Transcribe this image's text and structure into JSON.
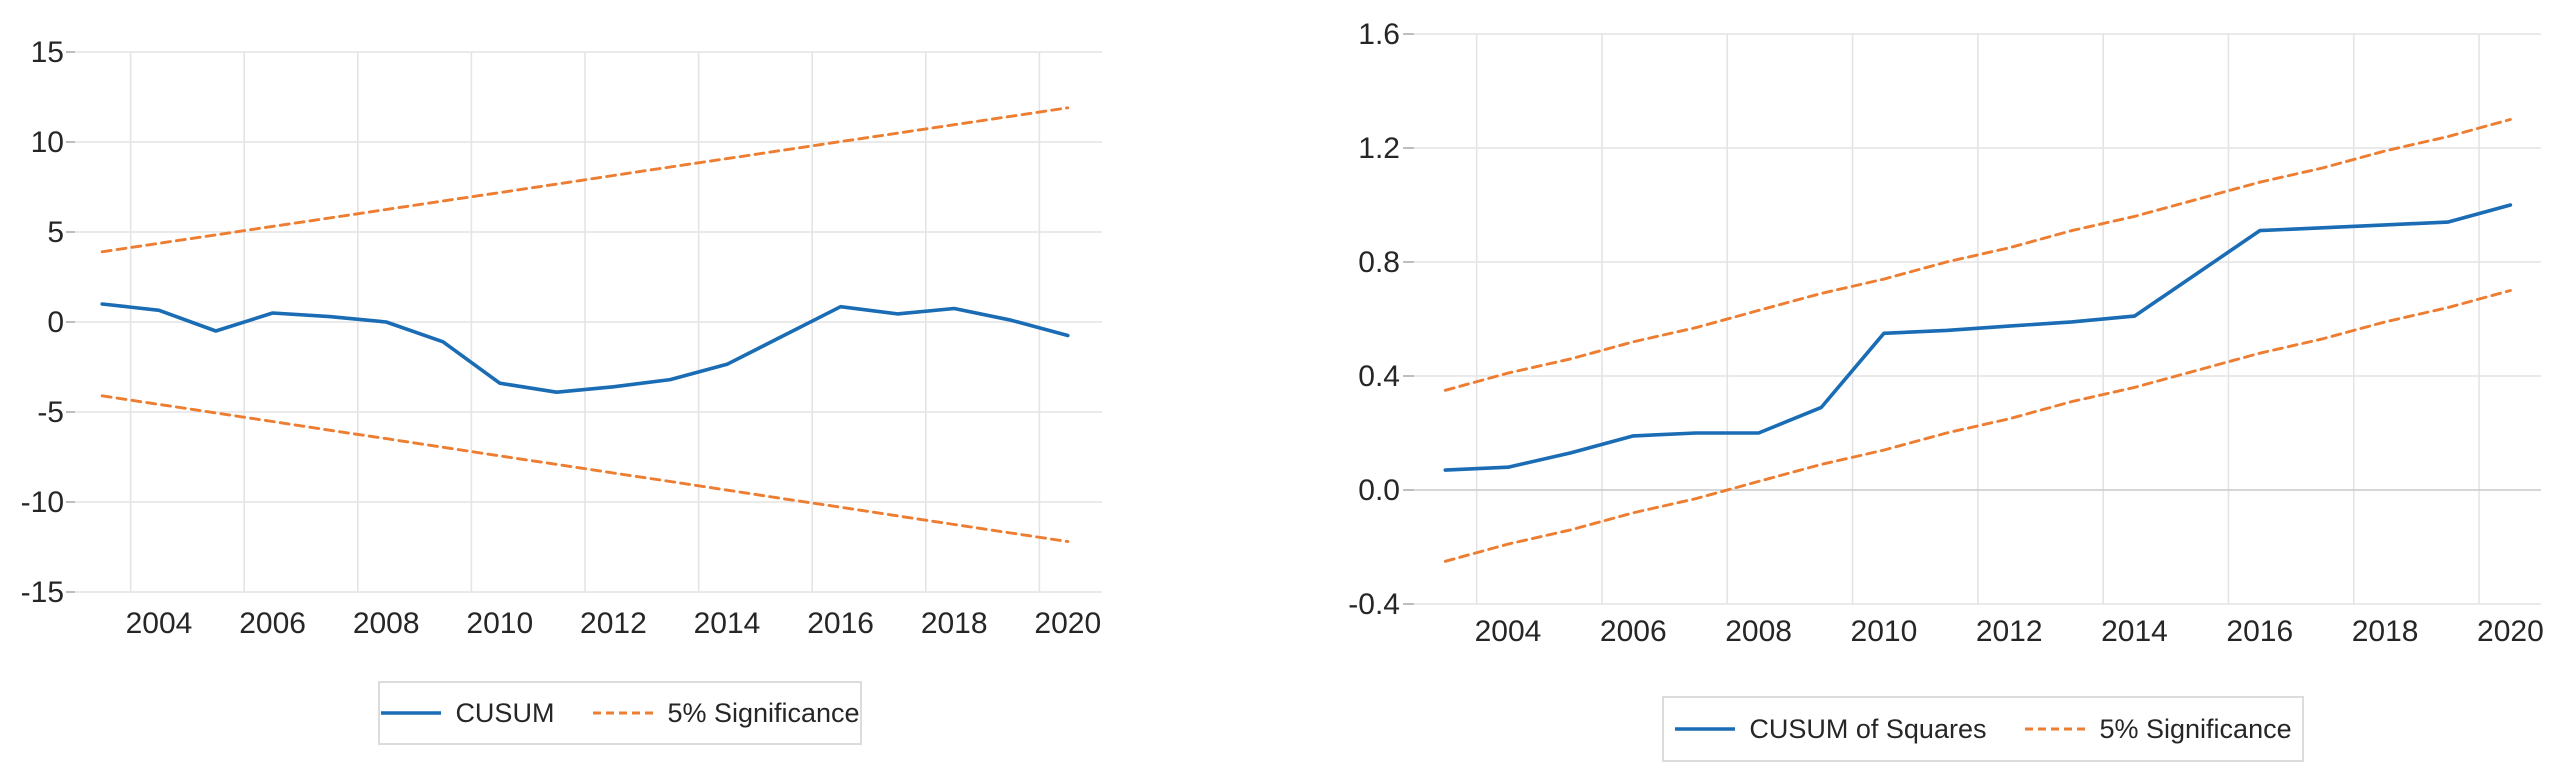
{
  "page": {
    "background": "#FFFFFF",
    "description": "Two side-by-side parameter stability test plots: CUSUM (left) and CUSUM of Squares (right), each with dashed 5% significance bounds, annual data 2003-2020"
  },
  "colors": {
    "series_blue": "#1A6CB5",
    "series_orange": "#ED7D31",
    "gridline": "#E4E4E4",
    "zero_gridline": "#C9C9C9",
    "tick_mark": "#ADADAD",
    "tick_text": "#262626",
    "legend_border": "#DCDCDC"
  },
  "chart_data": [
    {
      "id": "cusum",
      "type": "line",
      "title": "",
      "xlabel": "",
      "ylabel": "",
      "grid": "both",
      "legend_position": "bottom-center",
      "x": [
        2003,
        2004,
        2005,
        2006,
        2007,
        2008,
        2009,
        2010,
        2011,
        2012,
        2013,
        2014,
        2015,
        2016,
        2017,
        2018,
        2019,
        2020
      ],
      "xticks": [
        {
          "label": "2004",
          "v": 2004
        },
        {
          "label": "2006",
          "v": 2006
        },
        {
          "label": "2008",
          "v": 2008
        },
        {
          "label": "2010",
          "v": 2010
        },
        {
          "label": "2012",
          "v": 2012
        },
        {
          "label": "2014",
          "v": 2014
        },
        {
          "label": "2016",
          "v": 2016
        },
        {
          "label": "2018",
          "v": 2018
        },
        {
          "label": "2020",
          "v": 2020
        }
      ],
      "yticks": [
        {
          "label": "15",
          "v": 15
        },
        {
          "label": "10",
          "v": 10
        },
        {
          "label": "5",
          "v": 5
        },
        {
          "label": "0",
          "v": 0
        },
        {
          "label": "-5",
          "v": -5
        },
        {
          "label": "-10",
          "v": -10
        },
        {
          "label": "-15",
          "v": -15
        }
      ],
      "ylim": [
        -15,
        15
      ],
      "series": [
        {
          "name": "CUSUM",
          "role": "statistic",
          "color": "#1A6CB5",
          "style": "solid",
          "values": [
            1.0,
            0.65,
            -0.5,
            0.5,
            0.3,
            0.0,
            -1.1,
            -3.4,
            -3.9,
            -3.6,
            -3.2,
            -2.35,
            -0.75,
            0.85,
            0.45,
            0.75,
            0.1,
            -0.75
          ]
        },
        {
          "name": "5% Significance",
          "role": "upper-bound",
          "color": "#ED7D31",
          "style": "dashed",
          "values": [
            3.9,
            4.37,
            4.84,
            5.31,
            5.78,
            6.25,
            6.72,
            7.19,
            7.66,
            8.14,
            8.61,
            9.08,
            9.55,
            10.02,
            10.49,
            10.96,
            11.43,
            11.9
          ]
        },
        {
          "name": "5% Significance",
          "role": "lower-bound",
          "color": "#ED7D31",
          "style": "dashed",
          "values": [
            -4.1,
            -4.58,
            -5.05,
            -5.53,
            -6.01,
            -6.48,
            -6.96,
            -7.44,
            -7.91,
            -8.39,
            -8.86,
            -9.34,
            -9.82,
            -10.29,
            -10.77,
            -11.25,
            -11.72,
            -12.2
          ]
        }
      ],
      "legend": [
        {
          "label": "CUSUM",
          "series": 0
        },
        {
          "label": "5% Significance",
          "series": 1
        }
      ]
    },
    {
      "id": "cusum-of-squares",
      "type": "line",
      "title": "",
      "xlabel": "",
      "ylabel": "",
      "grid": "both",
      "legend_position": "bottom-center",
      "x": [
        2003,
        2004,
        2005,
        2006,
        2007,
        2008,
        2009,
        2010,
        2011,
        2012,
        2013,
        2014,
        2015,
        2016,
        2017,
        2018,
        2019,
        2020
      ],
      "xticks": [
        {
          "label": "2004",
          "v": 2004
        },
        {
          "label": "2006",
          "v": 2006
        },
        {
          "label": "2008",
          "v": 2008
        },
        {
          "label": "2010",
          "v": 2010
        },
        {
          "label": "2012",
          "v": 2012
        },
        {
          "label": "2014",
          "v": 2014
        },
        {
          "label": "2016",
          "v": 2016
        },
        {
          "label": "2018",
          "v": 2018
        },
        {
          "label": "2020",
          "v": 2020
        }
      ],
      "yticks": [
        {
          "label": "1.6",
          "v": 1.6
        },
        {
          "label": "1.2",
          "v": 1.2
        },
        {
          "label": "0.8",
          "v": 0.8
        },
        {
          "label": "0.4",
          "v": 0.4
        },
        {
          "label": "0.0",
          "v": 0.0
        },
        {
          "label": "-0.4",
          "v": -0.4
        }
      ],
      "ylim": [
        -0.4,
        1.6
      ],
      "series": [
        {
          "name": "CUSUM of Squares",
          "role": "statistic",
          "color": "#1A6CB5",
          "style": "solid",
          "values": [
            0.07,
            0.08,
            0.13,
            0.19,
            0.2,
            0.2,
            0.29,
            0.55,
            0.56,
            0.575,
            0.59,
            0.61,
            0.76,
            0.91,
            0.92,
            0.93,
            0.94,
            1.0
          ]
        },
        {
          "name": "5% Significance",
          "role": "upper-bound",
          "color": "#ED7D31",
          "style": "dashed",
          "values": [
            0.35,
            0.41,
            0.46,
            0.52,
            0.57,
            0.63,
            0.69,
            0.74,
            0.8,
            0.85,
            0.91,
            0.96,
            1.02,
            1.08,
            1.13,
            1.19,
            1.24,
            1.3
          ]
        },
        {
          "name": "5% Significance",
          "role": "lower-bound",
          "color": "#ED7D31",
          "style": "dashed",
          "values": [
            -0.25,
            -0.19,
            -0.14,
            -0.08,
            -0.03,
            0.03,
            0.09,
            0.14,
            0.2,
            0.25,
            0.31,
            0.36,
            0.42,
            0.48,
            0.53,
            0.59,
            0.64,
            0.7
          ]
        }
      ],
      "legend": [
        {
          "label": "CUSUM of Squares",
          "series": 0
        },
        {
          "label": "5% Significance",
          "series": 1
        }
      ]
    }
  ]
}
